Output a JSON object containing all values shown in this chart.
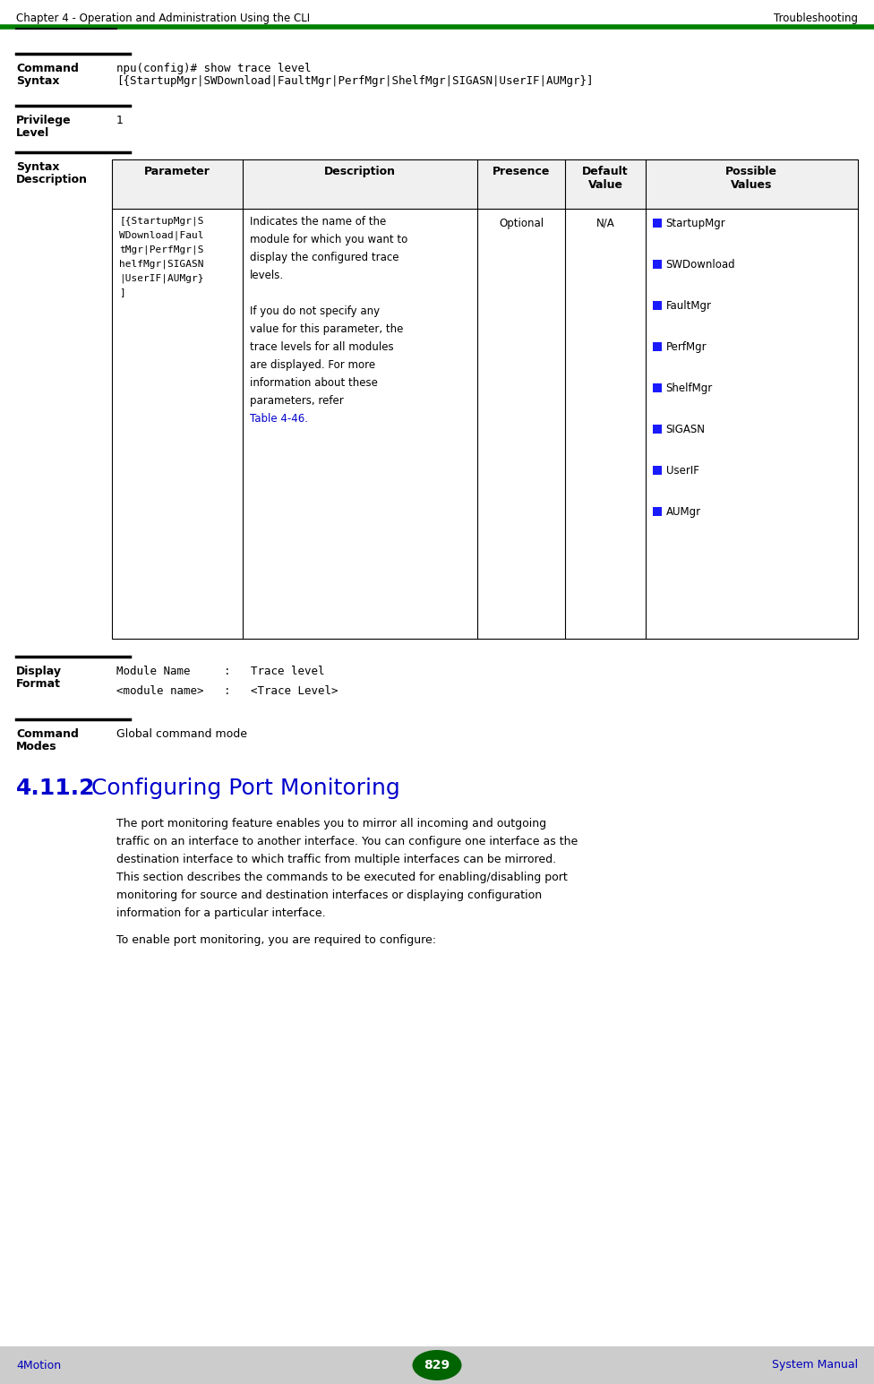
{
  "header_left": "Chapter 4 - Operation and Administration Using the CLI",
  "header_right": "Troubleshooting",
  "header_line_color": "#008000",
  "footer_left": "4Motion",
  "footer_center": "829",
  "footer_right": "System Manual",
  "footer_bg": "#cccccc",
  "footer_ellipse_color": "#006400",
  "footer_text_color": "#0000bb",
  "bg_color": "#ffffff",
  "cmd_syntax_line1": "npu(config)# show trace level",
  "cmd_syntax_line2": "[{StartupMgr|SWDownload|FaultMgr|PerfMgr|ShelfMgr|SIGASN|UserIF|AUMgr}]",
  "privilege_value": "1",
  "table_headers": [
    "Parameter",
    "Description",
    "Presence",
    "Default\nValue",
    "Possible\nValues"
  ],
  "table_row1_col1_lines": [
    "[{StartupMgr|S",
    "WDownload|Faul",
    "tMgr|PerfMgr|S",
    "helfMgr|SIGASN",
    "|UserIF|AUMgr}",
    "]"
  ],
  "table_row1_col2_lines": [
    "Indicates the name of the",
    "module for which you want to",
    "display the configured trace",
    "levels.",
    "",
    "If you do not specify any",
    "value for this parameter, the",
    "trace levels for all modules",
    "are displayed. For more",
    "information about these",
    "parameters, refer",
    "Table 4-46."
  ],
  "table_row1_col3": "Optional",
  "table_row1_col4": "N/A",
  "table_row1_col5_items": [
    "StartupMgr",
    "SWDownload",
    "FaultMgr",
    "PerfMgr",
    "ShelfMgr",
    "SIGASN",
    "UserIF",
    "AUMgr"
  ],
  "table_link_color": "#0000cc",
  "display_line1": "Module Name     :   Trace level",
  "display_line2": "<module name>   :   <Trace Level>",
  "cmd_modes_value": "Global command mode",
  "section_title_num": "4.11.2",
  "section_title_text": "  Configuring Port Monitoring",
  "section_title_color": "#0000cc",
  "body_lines": [
    "The port monitoring feature enables you to mirror all incoming and outgoing",
    "traffic on an interface to another interface. You can configure one interface as the",
    "destination interface to which traffic from multiple interfaces can be mirrored.",
    "This section describes the commands to be executed for enabling/disabling port",
    "monitoring for source and destination interfaces or displaying configuration",
    "information for a particular interface."
  ],
  "body_text2": "To enable port monitoring, you are required to configure:",
  "mono_font": "DejaVu Sans Mono",
  "sans_font": "DejaVu Sans",
  "bold_font": "DejaVu Sans"
}
